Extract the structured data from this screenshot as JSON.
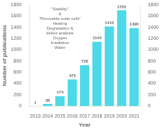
{
  "chart_data": {
    "type": "bar",
    "categories": [
      "2013",
      "2014",
      "2015",
      "2016",
      "2017",
      "2018",
      "2019",
      "2020",
      "2021"
    ],
    "values": [
      1,
      38,
      174,
      473,
      726,
      1144,
      1415,
      1705,
      1390
    ],
    "color": "#4DD9E8",
    "xlabel": "Year",
    "ylabel": "Number of publications",
    "ylim": [
      0,
      1800
    ],
    "yticks": [
      0,
      200,
      400,
      600,
      800,
      1000,
      1200,
      1400,
      1600,
      1800
    ],
    "y2lim": [
      0,
      1800
    ],
    "y2ticks": [
      0,
      200,
      400,
      600,
      800,
      1000,
      1200,
      1400,
      1600,
      1800
    ],
    "grid": false,
    "data_labels": true,
    "annotations": [
      "\"Stability\"",
      "&",
      "\"Perovskite solar cells\"",
      "Heating",
      "Degradation &",
      "defect analysis",
      "Oxygen",
      "Irradiation",
      "Water"
    ]
  }
}
